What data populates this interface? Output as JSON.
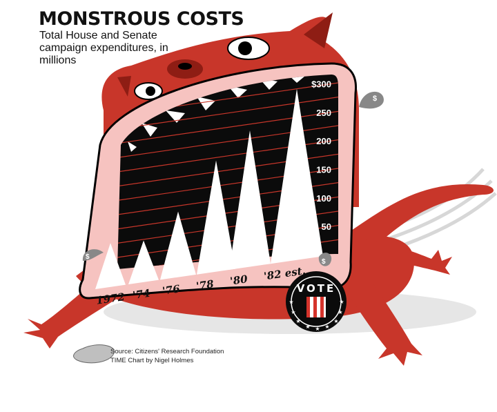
{
  "header": {
    "title": "MONSTROUS COSTS",
    "subtitle": "Total House and Senate campaign expenditures, in millions"
  },
  "badge": {
    "text": "VOTE"
  },
  "credits": {
    "source": "Source: Citizens' Research Foundation",
    "byline": "TIME Chart by Nigel Holmes"
  },
  "colors": {
    "monster": "#c8362a",
    "monster_dark": "#8e1d14",
    "gum": "#f6c3c0",
    "mouth": "#0b0b0b",
    "tooth": "#ffffff",
    "rule": "#c8362a"
  },
  "chart_data": {
    "type": "area",
    "title": "MONSTROUS COSTS",
    "subtitle": "Total House and Senate campaign expenditures, in millions",
    "categories": [
      "1972",
      "'74",
      "'76",
      "'78",
      "'80",
      "'82 est."
    ],
    "values": [
      77,
      73,
      115,
      195,
      239,
      300
    ],
    "ylim": [
      0,
      300
    ],
    "y_ticks": [
      "50",
      "100",
      "150",
      "200",
      "250",
      "$300"
    ],
    "grid": true,
    "marks": "triangular teeth"
  }
}
